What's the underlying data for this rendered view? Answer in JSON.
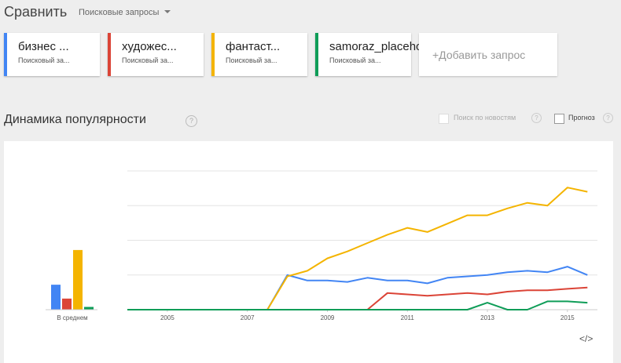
{
  "header": {
    "title": "Сравнить",
    "dropdown": "Поисковые запросы"
  },
  "terms": [
    {
      "name": "бизнес ...",
      "subtitle": "Поисковый за...",
      "color": "#4285f4"
    },
    {
      "name": "художес...",
      "subtitle": "Поисковый за...",
      "color": "#db4437"
    },
    {
      "name": "фантаст...",
      "subtitle": "Поисковый за...",
      "color": "#f4b400"
    },
    {
      "name": "samoraz_placeholder",
      "subtitle": "Поисковый за...",
      "color": "#0f9d58"
    }
  ],
  "add_term": "+Добавить запрос",
  "section": {
    "title": "Динамика популярности",
    "help": "?",
    "news_option": "Поиск по новостям",
    "forecast_option": "Прогноз"
  },
  "embed": "</>",
  "chart_data": [
    {
      "type": "bar",
      "categories": [
        "В среднем"
      ],
      "ylim": [
        0,
        100
      ],
      "series": [
        {
          "color": "#4285f4",
          "values": [
            18
          ]
        },
        {
          "color": "#db4437",
          "values": [
            8
          ]
        },
        {
          "color": "#f4b400",
          "values": [
            43
          ]
        },
        {
          "color": "#0f9d58",
          "values": [
            2
          ]
        }
      ]
    },
    {
      "type": "line",
      "xlim": [
        2004,
        2015.75
      ],
      "ylim": [
        0,
        100
      ],
      "xticks": [
        2005,
        2007,
        2009,
        2011,
        2013,
        2015
      ],
      "yticks": [
        25,
        50,
        75,
        100
      ],
      "grid": true,
      "x": [
        2004,
        2004.5,
        2005,
        2005.5,
        2006,
        2006.5,
        2007,
        2007.5,
        2008,
        2008.5,
        2009,
        2009.5,
        2010,
        2010.5,
        2011,
        2011.5,
        2012,
        2012.5,
        2013,
        2013.5,
        2014,
        2014.5,
        2015,
        2015.5
      ],
      "series": [
        {
          "color": "#4285f4",
          "values": [
            0,
            0,
            0,
            0,
            0,
            0,
            0,
            0,
            25,
            21,
            21,
            20,
            23,
            21,
            21,
            19,
            23,
            24,
            25,
            27,
            28,
            27,
            31,
            25
          ]
        },
        {
          "color": "#db4437",
          "values": [
            0,
            0,
            0,
            0,
            0,
            0,
            0,
            0,
            0,
            0,
            0,
            0,
            0,
            12,
            11,
            10,
            11,
            12,
            11,
            13,
            14,
            14,
            15,
            16
          ]
        },
        {
          "color": "#f4b400",
          "values": [
            0,
            0,
            0,
            0,
            0,
            0,
            0,
            0,
            24,
            28,
            37,
            42,
            48,
            54,
            59,
            56,
            62,
            68,
            68,
            73,
            77,
            75,
            88,
            85
          ]
        },
        {
          "color": "#0f9d58",
          "values": [
            0,
            0,
            0,
            0,
            0,
            0,
            0,
            0,
            0,
            0,
            0,
            0,
            0,
            0,
            0,
            0,
            0,
            0,
            5,
            0,
            0,
            6,
            6,
            5
          ]
        }
      ]
    }
  ]
}
